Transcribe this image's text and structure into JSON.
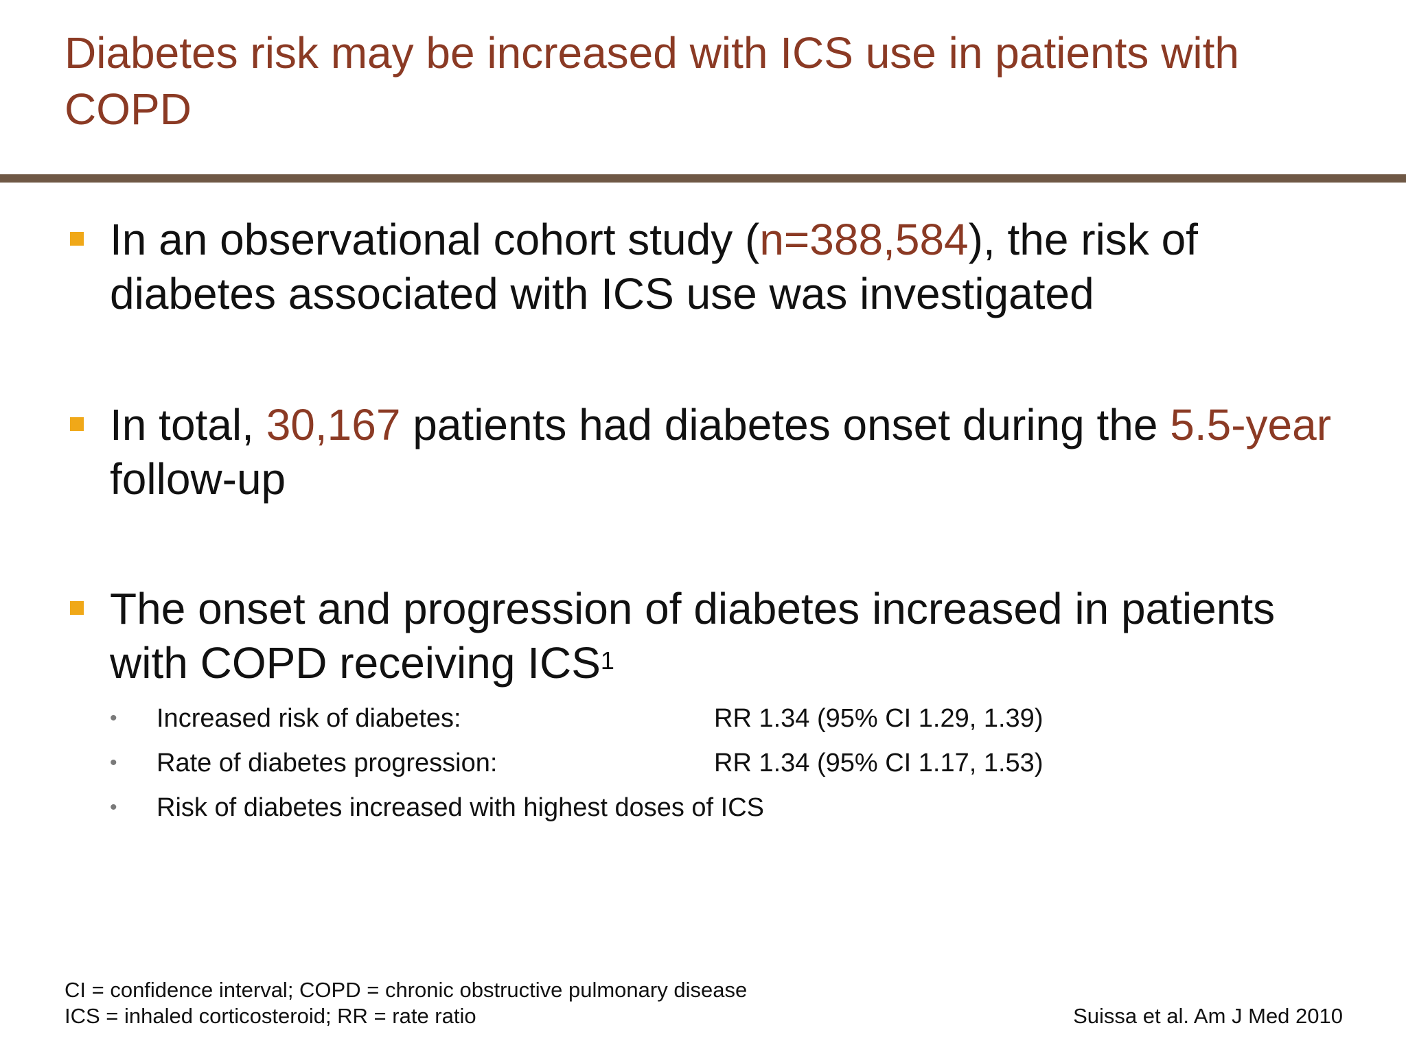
{
  "slide": {
    "title": "Diabetes risk may be increased with ICS use in patients with COPD",
    "bullets": [
      {
        "parts": [
          {
            "text": "In an observational cohort study (",
            "highlight": false
          },
          {
            "text": "n=388,584",
            "highlight": true
          },
          {
            "text": "), the risk of diabetes associated with ICS use was investigated",
            "highlight": false
          }
        ]
      },
      {
        "parts": [
          {
            "text": "In total, ",
            "highlight": false
          },
          {
            "text": "30,167",
            "highlight": true
          },
          {
            "text": " patients had diabetes onset during the ",
            "highlight": false
          },
          {
            "text": "5.5-year",
            "highlight": true
          },
          {
            "text": " follow-up",
            "highlight": false
          }
        ]
      },
      {
        "text": "The onset and progression of diabetes increased in patients with COPD receiving ICS",
        "superscript": "1",
        "sub_bullets": [
          {
            "label": "Increased risk of diabetes:",
            "value": "RR 1.34 (95% CI 1.29, 1.39)"
          },
          {
            "label": "Rate of diabetes progression:",
            "value": "RR 1.34 (95% CI 1.17, 1.53)"
          },
          {
            "label": "Risk of diabetes increased with highest doses of ICS",
            "value": ""
          }
        ]
      }
    ],
    "footnotes": [
      "CI = confidence interval; COPD = chronic obstructive pulmonary disease",
      "ICS = inhaled corticosteroid; RR = rate ratio"
    ],
    "reference": "Suissa et al. Am J Med 2010",
    "colors": {
      "title": "#8b3a24",
      "highlight": "#8b3a24",
      "divider": "#6f5845",
      "bullet_marker": "#f0a818"
    },
    "icons": {
      "bullet_marker": "square-bullet-icon",
      "sub_bullet_marker": "dot-bullet-icon"
    }
  }
}
